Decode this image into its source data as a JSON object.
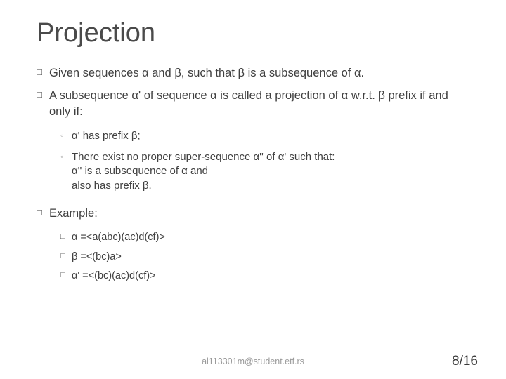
{
  "title": "Projection",
  "bullets": {
    "p1": "Given sequences α and β, such that β is a subsequence of α.",
    "p2": "A subsequence α' of sequence α is called a projection of α w.r.t. β prefix if and only if:",
    "s1": "α' has prefix β;",
    "s2": "There exist no proper super-sequence α'' of α' such that:\nα'' is a subsequence of α and\nalso has prefix β.",
    "p3": "Example:",
    "e1": "α =<a(abc)(ac)d(cf)>",
    "e2": "β =<(bc)a>",
    "e3": "α' =<(bc)(ac)d(cf)>"
  },
  "footer": {
    "email": "al113301m@student.etf.rs",
    "page": "8/16"
  },
  "colors": {
    "title": "#4a4a4a",
    "body": "#404040",
    "marker_dim": "#9c9c9c",
    "footer_email": "#9a9a9a",
    "background": "#ffffff"
  },
  "fontsize": {
    "title_pt": 38,
    "body_pt": 16.5,
    "sub_pt": 15,
    "subsub_pt": 14.5,
    "footer_email_pt": 12.5,
    "pagenum_pt": 19
  }
}
